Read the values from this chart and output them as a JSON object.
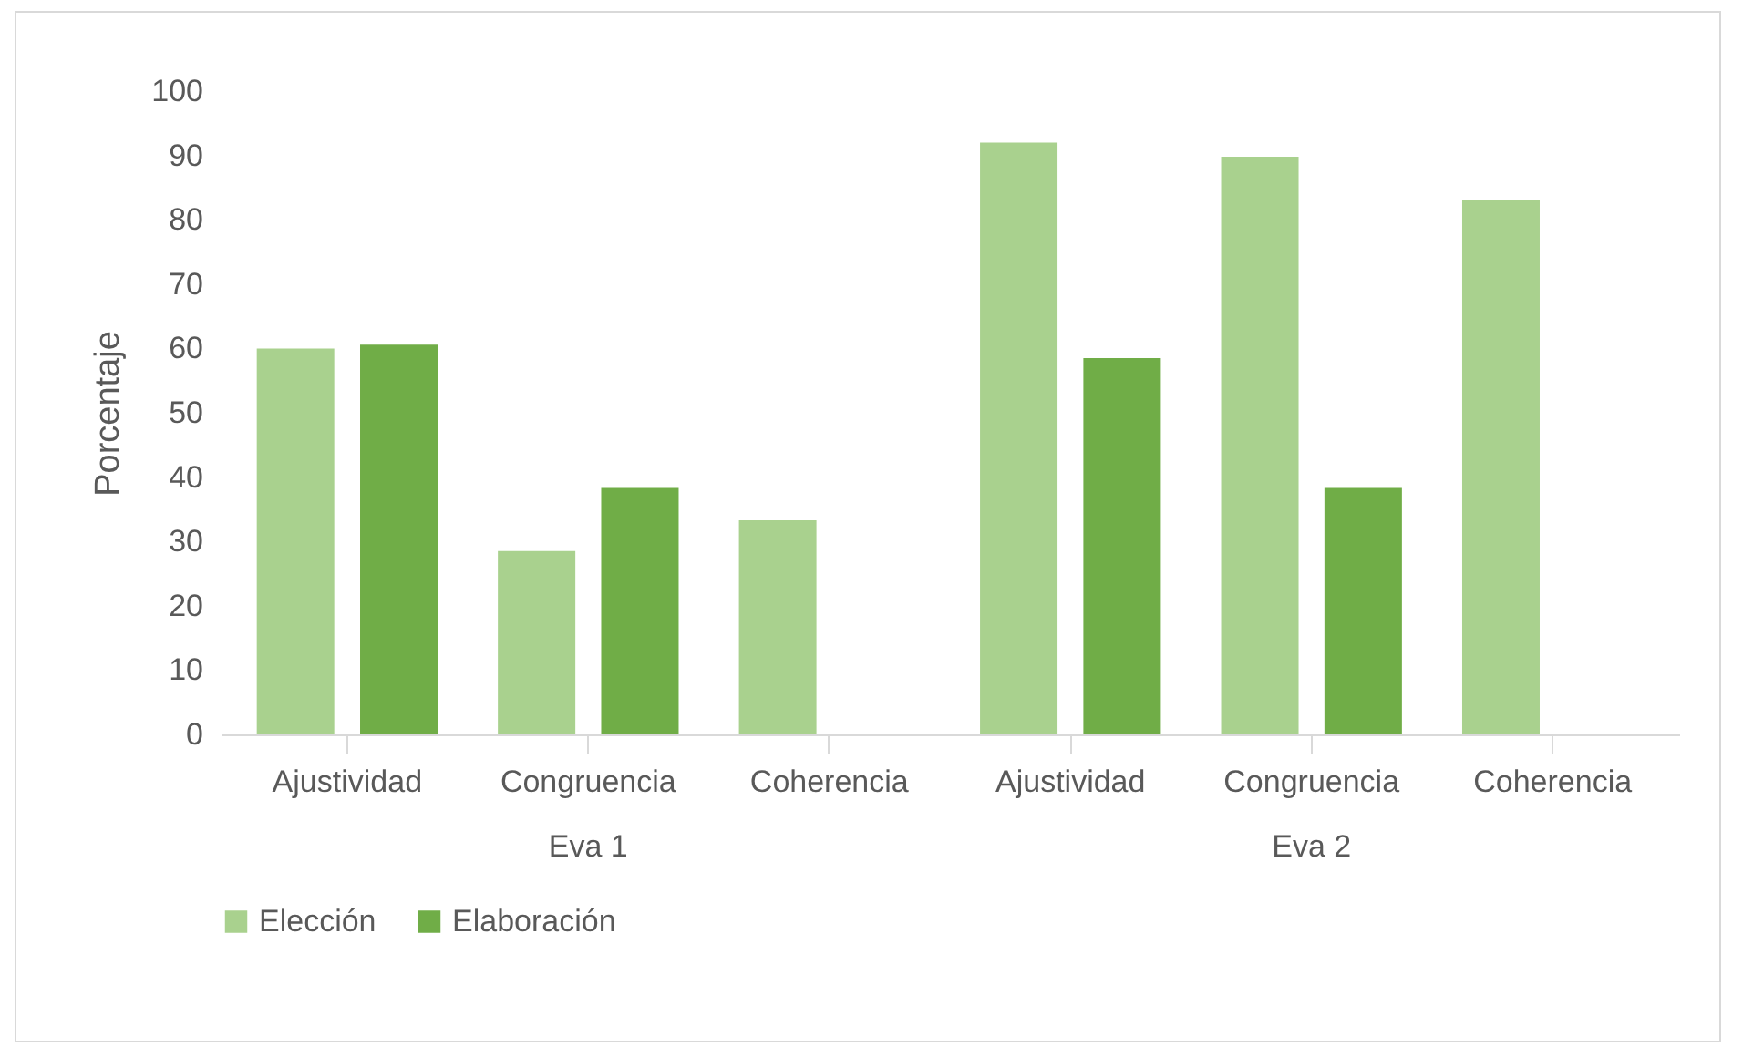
{
  "chart_data": {
    "type": "bar",
    "ylabel": "Porcentaje",
    "categories": [
      "Ajustividad",
      "Congruencia",
      "Coherencia",
      "Ajustividad",
      "Congruencia",
      "Coherencia"
    ],
    "annotations": [
      "Eva 1",
      "Eva 2"
    ],
    "series": [
      {
        "name": "Elección",
        "color": "#a9d18e",
        "values": [
          60,
          28.5,
          33.3,
          92,
          89.8,
          83
        ]
      },
      {
        "name": "Elaboración",
        "color": "#70ad47",
        "values": [
          60.6,
          38.3,
          null,
          58.5,
          38.3,
          null
        ]
      }
    ],
    "ylim": [
      0,
      100
    ],
    "yticks": [
      0,
      10,
      20,
      30,
      40,
      50,
      60,
      70,
      80,
      90,
      100
    ],
    "grid": false,
    "legend": "bottom"
  }
}
